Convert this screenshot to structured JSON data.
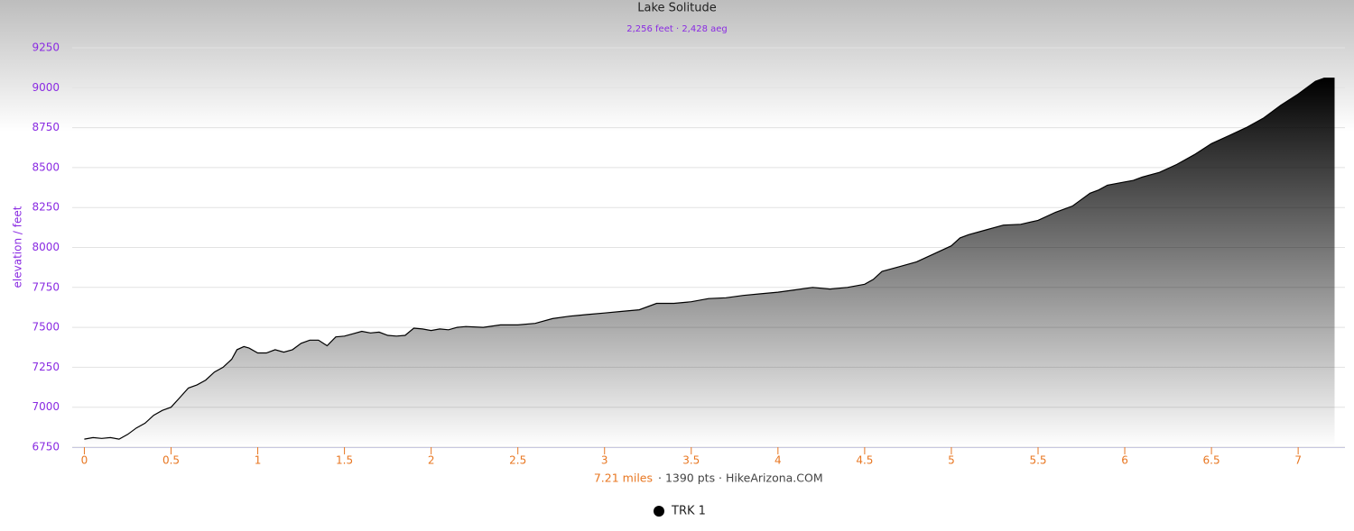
{
  "chart_data": {
    "type": "area",
    "title": "Lake Solitude",
    "subtitle": "2,256 feet · 2,428 aeg",
    "ylabel": "elevation / feet",
    "footer": {
      "distance": "7.21 miles",
      "info": "· 1390 pts · HikeArizona.COM"
    },
    "xlim": [
      -0.07,
      7.27
    ],
    "ylim": [
      6750,
      9250
    ],
    "xticks": [
      0,
      0.5,
      1,
      1.5,
      2,
      2.5,
      3,
      3.5,
      4,
      4.5,
      5,
      5.5,
      6,
      6.5,
      7
    ],
    "yticks": [
      6750,
      7000,
      7250,
      7500,
      7750,
      8000,
      8250,
      8500,
      8750,
      9000,
      9250
    ],
    "grid": true,
    "legend": "bottom",
    "series": [
      {
        "name": "TRK 1",
        "color": "#000000",
        "x": [
          0,
          0.05,
          0.1,
          0.15,
          0.2,
          0.25,
          0.3,
          0.35,
          0.4,
          0.45,
          0.5,
          0.55,
          0.6,
          0.65,
          0.7,
          0.75,
          0.8,
          0.85,
          0.88,
          0.92,
          0.95,
          1.0,
          1.05,
          1.1,
          1.15,
          1.2,
          1.25,
          1.3,
          1.35,
          1.4,
          1.45,
          1.5,
          1.55,
          1.6,
          1.65,
          1.7,
          1.75,
          1.8,
          1.85,
          1.9,
          1.95,
          2.0,
          2.05,
          2.1,
          2.15,
          2.2,
          2.3,
          2.4,
          2.5,
          2.6,
          2.7,
          2.8,
          2.9,
          3.0,
          3.1,
          3.2,
          3.3,
          3.4,
          3.5,
          3.6,
          3.7,
          3.8,
          3.9,
          4.0,
          4.1,
          4.2,
          4.3,
          4.4,
          4.5,
          4.55,
          4.6,
          4.7,
          4.8,
          4.9,
          5.0,
          5.05,
          5.1,
          5.2,
          5.3,
          5.4,
          5.5,
          5.6,
          5.7,
          5.75,
          5.8,
          5.85,
          5.9,
          6.0,
          6.05,
          6.1,
          6.2,
          6.3,
          6.4,
          6.5,
          6.6,
          6.7,
          6.8,
          6.9,
          7.0,
          7.1,
          7.15,
          7.21
        ],
        "values": [
          6800,
          6810,
          6805,
          6810,
          6800,
          6830,
          6870,
          6900,
          6950,
          6980,
          7000,
          7060,
          7120,
          7140,
          7170,
          7220,
          7250,
          7300,
          7360,
          7380,
          7370,
          7340,
          7340,
          7360,
          7345,
          7360,
          7400,
          7420,
          7420,
          7385,
          7440,
          7445,
          7460,
          7475,
          7465,
          7470,
          7450,
          7445,
          7450,
          7495,
          7490,
          7480,
          7490,
          7485,
          7500,
          7505,
          7500,
          7515,
          7515,
          7525,
          7555,
          7570,
          7580,
          7590,
          7600,
          7610,
          7650,
          7650,
          7660,
          7680,
          7685,
          7700,
          7710,
          7720,
          7735,
          7750,
          7740,
          7750,
          7770,
          7800,
          7850,
          7880,
          7910,
          7960,
          8010,
          8060,
          8080,
          8110,
          8140,
          8145,
          8170,
          8220,
          8260,
          8300,
          8340,
          8360,
          8390,
          8410,
          8420,
          8440,
          8470,
          8520,
          8580,
          8650,
          8700,
          8750,
          8810,
          8890,
          8960,
          9040,
          9060,
          9060
        ]
      }
    ]
  }
}
